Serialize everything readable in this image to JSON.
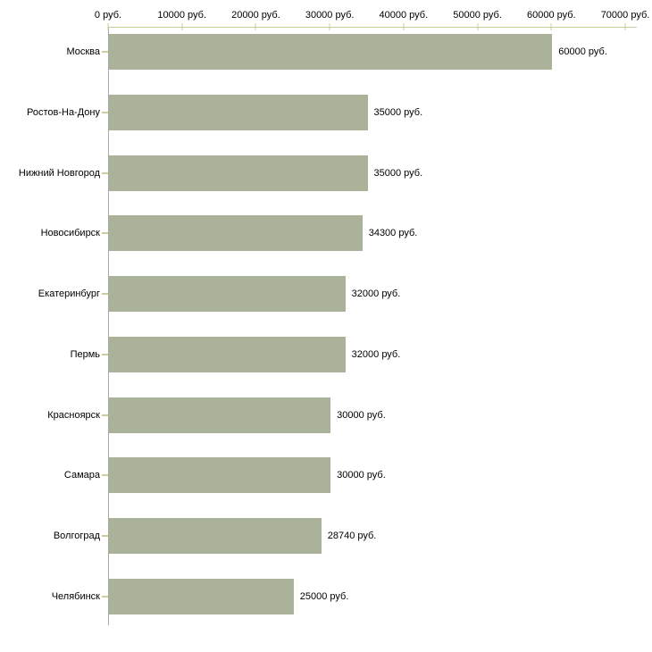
{
  "chart_data": {
    "type": "bar",
    "orientation": "horizontal",
    "title": "",
    "xlabel": "",
    "ylabel": "",
    "xlim": [
      0,
      70000
    ],
    "grid": false,
    "legend": "none",
    "categories": [
      "Москва",
      "Ростов-На-Дону",
      "Нижний Новгород",
      "Новосибирск",
      "Екатеринбург",
      "Пермь",
      "Красноярск",
      "Самара",
      "Волгоград",
      "Челябинск"
    ],
    "values": [
      60000,
      35000,
      35000,
      34300,
      32000,
      32000,
      30000,
      30000,
      28740,
      25000
    ],
    "value_labels": [
      "60000 руб.",
      "35000 руб.",
      "35000 руб.",
      "34300 руб.",
      "32000 руб.",
      "32000 руб.",
      "30000 руб.",
      "30000 руб.",
      "28740 руб.",
      "25000 руб."
    ],
    "x_tick_values": [
      0,
      10000,
      20000,
      30000,
      40000,
      50000,
      60000,
      70000
    ],
    "x_tick_labels": [
      "0 руб.",
      "10000 руб.",
      "20000 руб.",
      "30000 руб.",
      "40000 руб.",
      "50000 руб.",
      "60000 руб.",
      "70000 руб."
    ],
    "colors": {
      "bar": "#abb29a",
      "category_axis_line": "#a8a8a8",
      "value_axis_line": "#cccc99",
      "tick": "#cccc99",
      "text": "#000000"
    }
  }
}
